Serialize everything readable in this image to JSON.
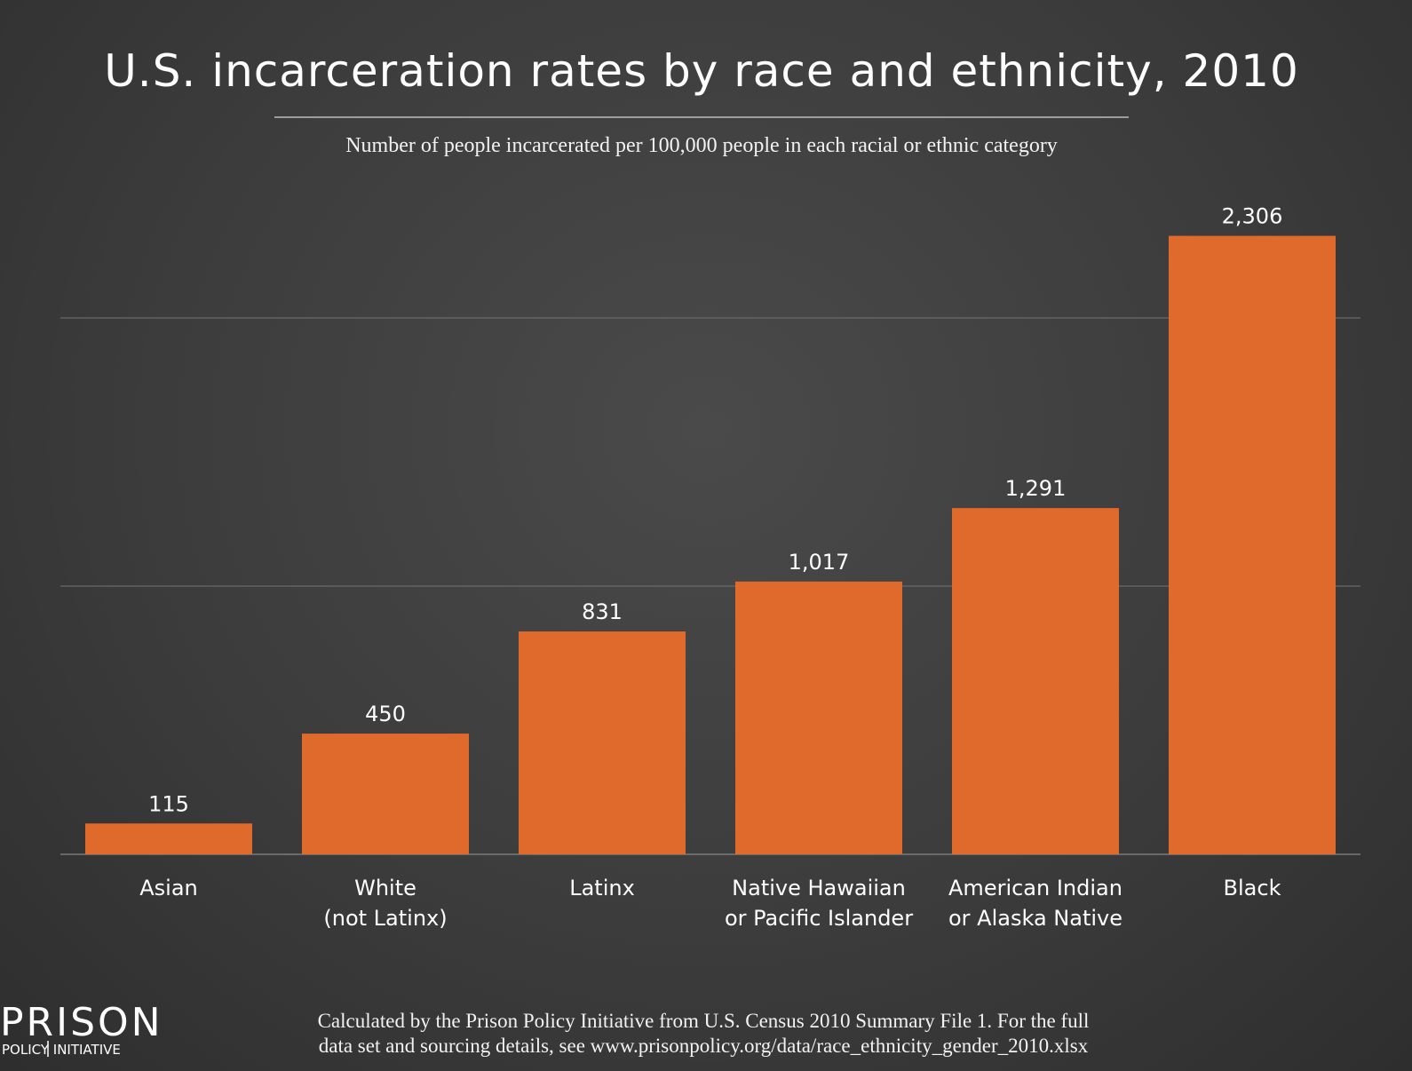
{
  "chart_data": {
    "type": "bar",
    "title": "U.S. incarceration rates by race and ethnicity, 2010",
    "subtitle": "Number of people incarcerated per 100,000 people in each racial or ethnic category",
    "categories": [
      [
        "Asian"
      ],
      [
        "White",
        "(not Latinx)"
      ],
      [
        "Latinx"
      ],
      [
        "Native Hawaiian",
        "or Pacific Islander"
      ],
      [
        "American Indian",
        "or Alaska Native"
      ],
      [
        "Black"
      ]
    ],
    "values": [
      115,
      450,
      831,
      1017,
      1291,
      2306
    ],
    "value_labels": [
      "115",
      "450",
      "831",
      "1,017",
      "1,291",
      "2,306"
    ],
    "ylim": [
      0,
      2400
    ],
    "gridlines": [
      1000,
      2000
    ],
    "xlabel": "",
    "ylabel": "",
    "bar_color": "#e06a2c",
    "grid_color": "#6a6a6a"
  },
  "footer": {
    "note_lines": [
      "Calculated by the Prison Policy Initiative from U.S. Census 2010 Summary File 1. For the full",
      "data set and sourcing details, see www.prisonpolicy.org/data/race_ethnicity_gender_2010.xlsx"
    ],
    "logo": {
      "top": "PRISON",
      "bottom": "POLICY INITIATIVE"
    }
  }
}
